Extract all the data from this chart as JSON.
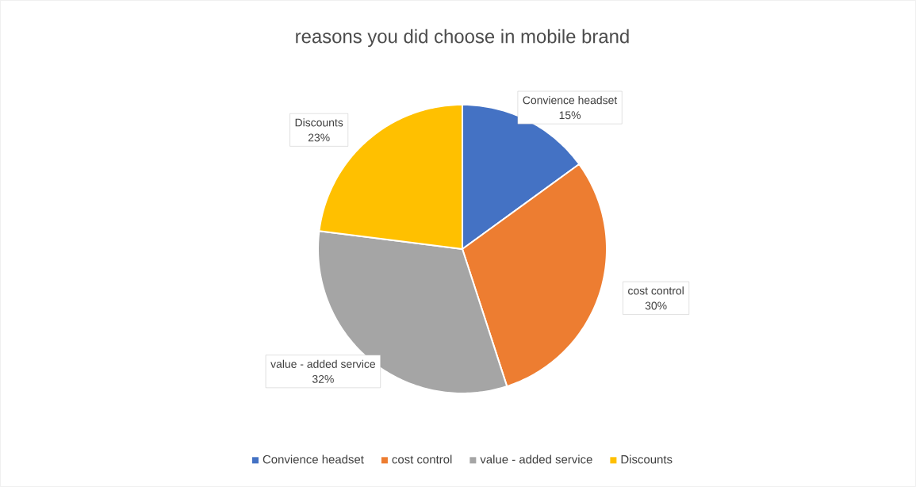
{
  "chart_data": {
    "type": "pie",
    "title": "reasons you did choose in mobile brand",
    "categories": [
      "Convience headset",
      "cost control",
      "value - added service",
      "Discounts"
    ],
    "values": [
      15,
      30,
      32,
      23
    ],
    "value_labels": [
      "15%",
      "30%",
      "32%",
      "23%"
    ],
    "colors": [
      "#4472c4",
      "#ed7d31",
      "#a5a5a5",
      "#ffc000"
    ],
    "legend": "bottom"
  }
}
